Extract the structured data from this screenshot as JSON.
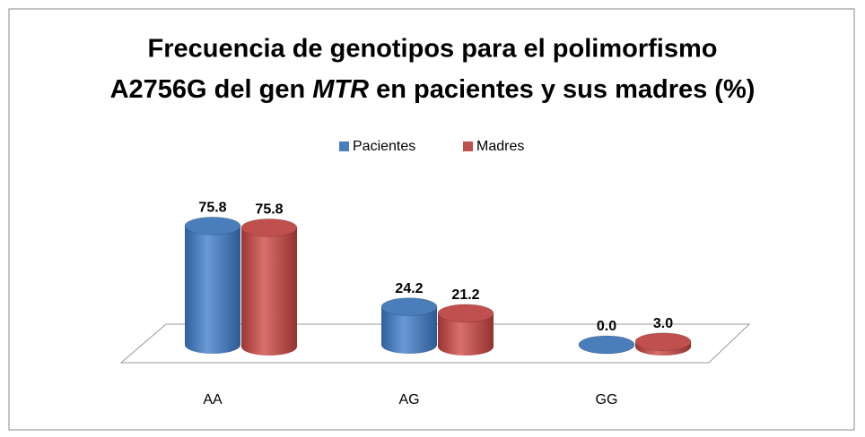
{
  "chart_data": {
    "type": "bar3d",
    "title_parts": [
      "Frecuencia de genotipos para el polimorfismo",
      "A2756G del gen ",
      "MTR",
      " en pacientes y sus madres (%)"
    ],
    "categories": [
      "AA",
      "AG",
      "GG"
    ],
    "series": [
      {
        "name": "Pacientes",
        "color": "#4a7ebb",
        "values": [
          75.8,
          24.2,
          0
        ],
        "value_labels": [
          "75.8",
          "24.2",
          "0.0"
        ]
      },
      {
        "name": "Madres",
        "color": "#c0504d",
        "values": [
          75.8,
          21.2,
          3
        ],
        "value_labels": [
          "75.8",
          "21.2",
          "3.0"
        ]
      }
    ],
    "legend": "top"
  }
}
